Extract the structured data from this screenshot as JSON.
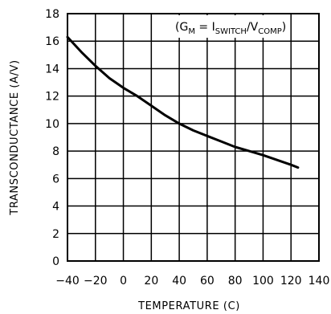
{
  "chart_data": {
    "type": "line",
    "title": "",
    "xlabel": "TEMPERATURE (C)",
    "ylabel": "TRANSCONDUCTANCE (A/V)",
    "xlim": [
      -40,
      140
    ],
    "ylim": [
      0,
      18
    ],
    "xticks": [
      -40,
      -20,
      0,
      20,
      40,
      60,
      80,
      100,
      120,
      140
    ],
    "yticks": [
      0,
      2,
      4,
      6,
      8,
      10,
      12,
      14,
      16,
      18
    ],
    "xtick_labels": [
      "−40",
      "−20",
      "0",
      "20",
      "40",
      "60",
      "80",
      "100",
      "120",
      "140"
    ],
    "ytick_labels": [
      "0",
      "2",
      "4",
      "6",
      "8",
      "10",
      "12",
      "14",
      "16",
      "18"
    ],
    "grid": true,
    "legend": "none",
    "annotation": {
      "open": "(G",
      "g_sub": "M",
      "eq": " = I",
      "i_sub": "SWITCH",
      "slash": "/V",
      "v_sub": "COMP",
      "close": ")"
    },
    "series": [
      {
        "x": [
          -40,
          -30,
          -20,
          -10,
          0,
          10,
          20,
          30,
          40,
          50,
          60,
          70,
          80,
          90,
          100,
          110,
          120,
          125
        ],
        "y": [
          16.3,
          15.2,
          14.2,
          13.3,
          12.6,
          12.0,
          11.3,
          10.6,
          10.0,
          9.5,
          9.1,
          8.7,
          8.3,
          8.0,
          7.7,
          7.35,
          7.0,
          6.8
        ]
      }
    ],
    "color": "#000000"
  }
}
